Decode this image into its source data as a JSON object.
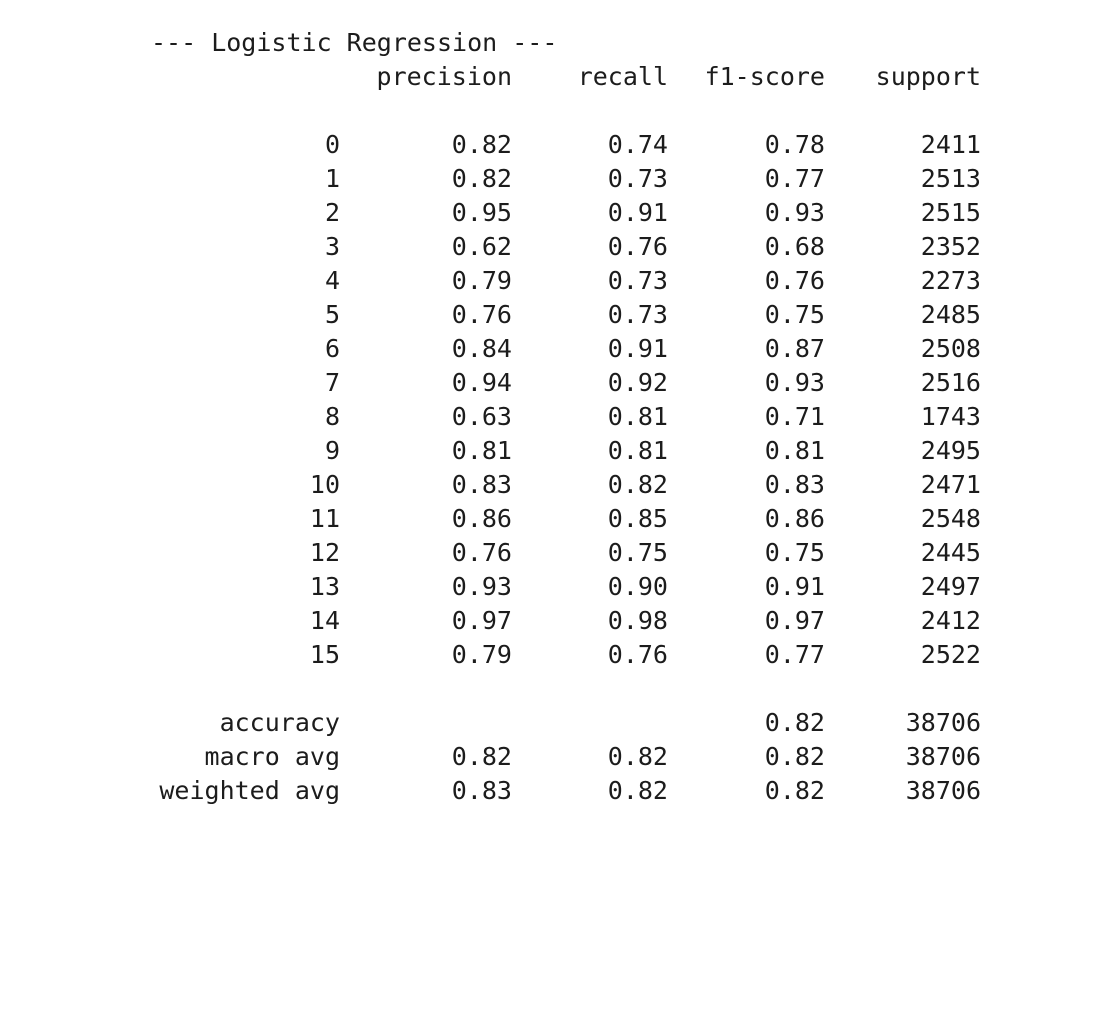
{
  "report": {
    "title": "--- Logistic Regression ---",
    "headers": {
      "precision": "precision",
      "recall": "recall",
      "f1": "f1-score",
      "support": "support"
    },
    "rows": [
      {
        "label": "0",
        "precision": "0.82",
        "recall": "0.74",
        "f1": "0.78",
        "support": "2411"
      },
      {
        "label": "1",
        "precision": "0.82",
        "recall": "0.73",
        "f1": "0.77",
        "support": "2513"
      },
      {
        "label": "2",
        "precision": "0.95",
        "recall": "0.91",
        "f1": "0.93",
        "support": "2515"
      },
      {
        "label": "3",
        "precision": "0.62",
        "recall": "0.76",
        "f1": "0.68",
        "support": "2352"
      },
      {
        "label": "4",
        "precision": "0.79",
        "recall": "0.73",
        "f1": "0.76",
        "support": "2273"
      },
      {
        "label": "5",
        "precision": "0.76",
        "recall": "0.73",
        "f1": "0.75",
        "support": "2485"
      },
      {
        "label": "6",
        "precision": "0.84",
        "recall": "0.91",
        "f1": "0.87",
        "support": "2508"
      },
      {
        "label": "7",
        "precision": "0.94",
        "recall": "0.92",
        "f1": "0.93",
        "support": "2516"
      },
      {
        "label": "8",
        "precision": "0.63",
        "recall": "0.81",
        "f1": "0.71",
        "support": "1743"
      },
      {
        "label": "9",
        "precision": "0.81",
        "recall": "0.81",
        "f1": "0.81",
        "support": "2495"
      },
      {
        "label": "10",
        "precision": "0.83",
        "recall": "0.82",
        "f1": "0.83",
        "support": "2471"
      },
      {
        "label": "11",
        "precision": "0.86",
        "recall": "0.85",
        "f1": "0.86",
        "support": "2548"
      },
      {
        "label": "12",
        "precision": "0.76",
        "recall": "0.75",
        "f1": "0.75",
        "support": "2445"
      },
      {
        "label": "13",
        "precision": "0.93",
        "recall": "0.90",
        "f1": "0.91",
        "support": "2497"
      },
      {
        "label": "14",
        "precision": "0.97",
        "recall": "0.98",
        "f1": "0.97",
        "support": "2412"
      },
      {
        "label": "15",
        "precision": "0.79",
        "recall": "0.76",
        "f1": "0.77",
        "support": "2522"
      }
    ],
    "summary": {
      "accuracy": {
        "label": "accuracy",
        "f1": "0.82",
        "support": "38706"
      },
      "macro_avg": {
        "label": "macro avg",
        "precision": "0.82",
        "recall": "0.82",
        "f1": "0.82",
        "support": "38706"
      },
      "weighted_avg": {
        "label": "weighted avg",
        "precision": "0.83",
        "recall": "0.82",
        "f1": "0.82",
        "support": "38706"
      }
    }
  }
}
